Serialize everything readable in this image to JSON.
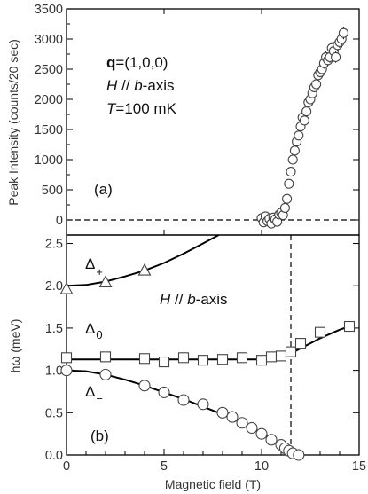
{
  "chart_data": [
    {
      "panel_label": "(a)",
      "type": "scatter",
      "ylabel": "Peak Intensity (counts/20 sec)",
      "xlim": [
        0,
        15
      ],
      "ylim": [
        -250,
        3500
      ],
      "yticks": [
        "0",
        "500",
        "1000",
        "1500",
        "2000",
        "2500",
        "3000",
        "3500"
      ],
      "annotations": {
        "q_bold": "q",
        "q_rest": "=(1,0,0)",
        "field_H": "H",
        "field_mid": " // ",
        "field_b": "b",
        "field_rest": "-axis",
        "temp_T": "T",
        "temp_rest": "=100 mK"
      },
      "reference_line_y": 0,
      "series": [
        {
          "x": [
            10.0,
            10.1,
            10.2,
            10.3,
            10.4,
            10.5,
            10.6,
            10.7,
            10.8,
            10.9,
            11.0,
            11.1,
            11.2,
            11.3,
            11.4,
            11.5,
            11.6,
            11.7,
            11.8,
            11.9,
            12.0,
            12.1,
            12.2,
            12.3,
            12.4,
            12.5,
            12.6,
            12.7,
            12.8,
            12.9,
            13.0,
            13.1,
            13.2,
            13.3,
            13.4,
            13.5,
            13.6,
            13.7,
            13.8,
            13.9,
            14.0,
            14.1,
            14.2
          ],
          "y": [
            30,
            -40,
            60,
            -20,
            20,
            -60,
            40,
            10,
            -30,
            90,
            120,
            80,
            200,
            350,
            600,
            800,
            1000,
            1150,
            1300,
            1400,
            1550,
            1700,
            1650,
            1800,
            1950,
            2000,
            2100,
            2200,
            2250,
            2400,
            2450,
            2500,
            2600,
            2700,
            2650,
            2700,
            2850,
            2800,
            2700,
            2900,
            2950,
            3000,
            3100
          ]
        }
      ]
    },
    {
      "panel_label": "(b)",
      "type": "scatter",
      "xlabel": "Magnetic field (T)",
      "ylabel": "ħω (meV)",
      "xlim": [
        0,
        15
      ],
      "ylim": [
        0,
        2.6
      ],
      "xticks": [
        "0",
        "5",
        "10",
        "15"
      ],
      "yticks": [
        "0.0",
        "0.5",
        "1.0",
        "1.5",
        "2.0",
        "2.5"
      ],
      "annotation": {
        "H": "H",
        "mid": " // ",
        "b": "b",
        "rest": "-axis"
      },
      "critical_field": 11.5,
      "series": [
        {
          "name": "Δ+",
          "name_main": "Δ",
          "name_sub": "+",
          "marker": "triangle",
          "x": [
            0,
            2,
            4
          ],
          "y": [
            1.96,
            2.04,
            2.18
          ],
          "fit": {
            "x": [
              0,
              1,
              2,
              3,
              4,
              5,
              6,
              7,
              7.8
            ],
            "y": [
              2.0,
              2.01,
              2.05,
              2.11,
              2.18,
              2.27,
              2.38,
              2.5,
              2.6
            ]
          }
        },
        {
          "name": "Δ0",
          "name_main": "Δ",
          "name_sub": "0",
          "marker": "square",
          "x": [
            0,
            2,
            4,
            5,
            6,
            7,
            8,
            9,
            10,
            10.5,
            11,
            11.5,
            12,
            13,
            14.5
          ],
          "y": [
            1.15,
            1.16,
            1.14,
            1.1,
            1.15,
            1.12,
            1.13,
            1.15,
            1.12,
            1.16,
            1.17,
            1.22,
            1.32,
            1.45,
            1.52
          ],
          "fit": {
            "x": [
              0,
              5,
              10,
              11,
              11.5,
              12,
              13,
              14,
              14.5
            ],
            "y": [
              1.13,
              1.13,
              1.13,
              1.16,
              1.2,
              1.26,
              1.38,
              1.48,
              1.52
            ]
          }
        },
        {
          "name": "Δ−",
          "name_main": "Δ",
          "name_sub": "−",
          "marker": "circle",
          "x": [
            0,
            2,
            4,
            5,
            6,
            7,
            8,
            8.5,
            9,
            9.5,
            10,
            10.5,
            11,
            11.2,
            11.4,
            11.6,
            11.9
          ],
          "y": [
            1.0,
            0.95,
            0.82,
            0.74,
            0.65,
            0.6,
            0.5,
            0.45,
            0.38,
            0.32,
            0.25,
            0.18,
            0.12,
            0.08,
            0.05,
            0.02,
            0.0
          ],
          "fit": {
            "x": [
              0,
              1,
              2,
              3,
              4,
              5,
              6,
              7,
              8,
              9,
              10,
              10.5,
              11,
              11.3
            ],
            "y": [
              1.0,
              0.99,
              0.95,
              0.89,
              0.82,
              0.74,
              0.66,
              0.57,
              0.48,
              0.38,
              0.26,
              0.19,
              0.1,
              0.0
            ]
          }
        }
      ]
    }
  ]
}
